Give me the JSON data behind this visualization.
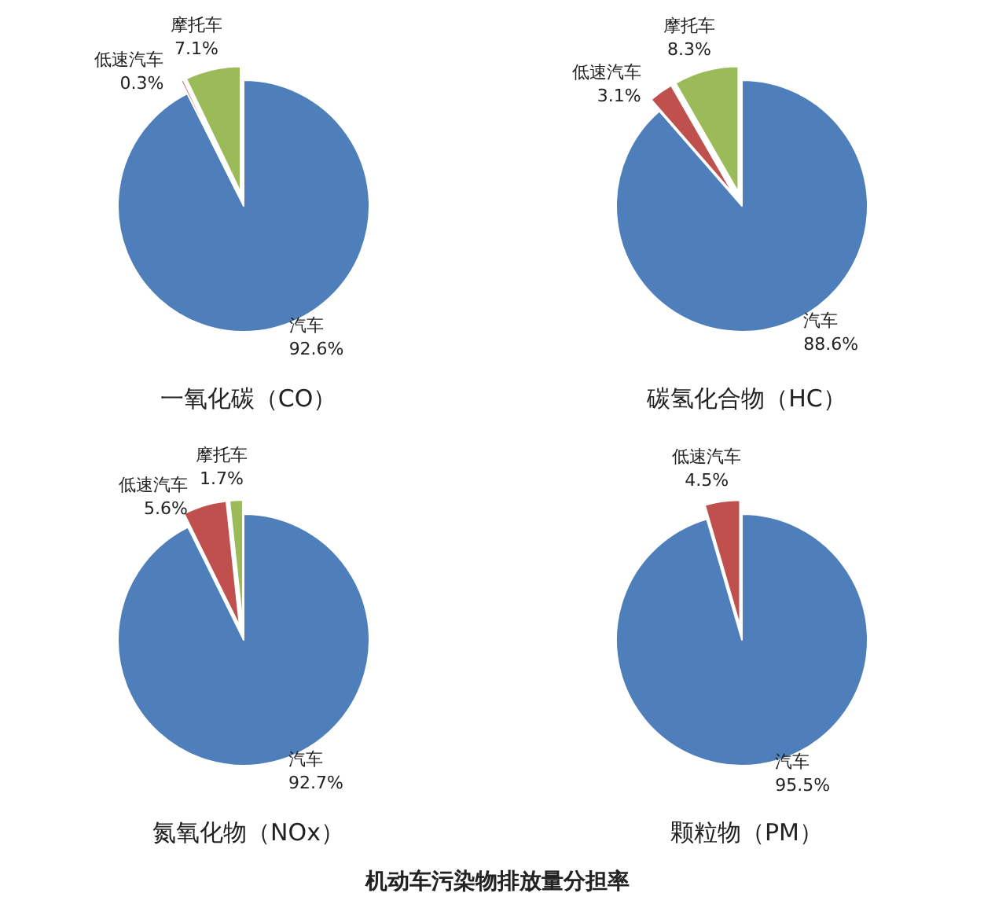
{
  "chart_data": [
    {
      "type": "pie",
      "title": "一氧化碳（CO）",
      "categories": [
        "汽车",
        "低速汽车",
        "摩托车"
      ],
      "values": [
        92.6,
        0.3,
        7.1
      ],
      "value_labels": [
        "92.6%",
        "0.3%",
        "7.1%"
      ],
      "colors": [
        "#4f7fba",
        "#c0504d",
        "#9bbb59"
      ]
    },
    {
      "type": "pie",
      "title": "碳氢化合物（HC）",
      "categories": [
        "汽车",
        "低速汽车",
        "摩托车"
      ],
      "values": [
        88.6,
        3.1,
        8.3
      ],
      "value_labels": [
        "88.6%",
        "3.1%",
        "8.3%"
      ],
      "colors": [
        "#4f7fba",
        "#c0504d",
        "#9bbb59"
      ]
    },
    {
      "type": "pie",
      "title": "氮氧化物（NOx）",
      "categories": [
        "汽车",
        "低速汽车",
        "摩托车"
      ],
      "values": [
        92.7,
        5.6,
        1.7
      ],
      "value_labels": [
        "92.7%",
        "5.6%",
        "1.7%"
      ],
      "colors": [
        "#4f7fba",
        "#c0504d",
        "#9bbb59"
      ]
    },
    {
      "type": "pie",
      "title": "颗粒物（PM）",
      "categories": [
        "汽车",
        "低速汽车"
      ],
      "values": [
        95.5,
        4.5
      ],
      "value_labels": [
        "95.5%",
        "4.5%"
      ],
      "colors": [
        "#4f7fba",
        "#c0504d"
      ],
      "annotations": [
        "机动车污染物排放量分担率"
      ]
    }
  ]
}
